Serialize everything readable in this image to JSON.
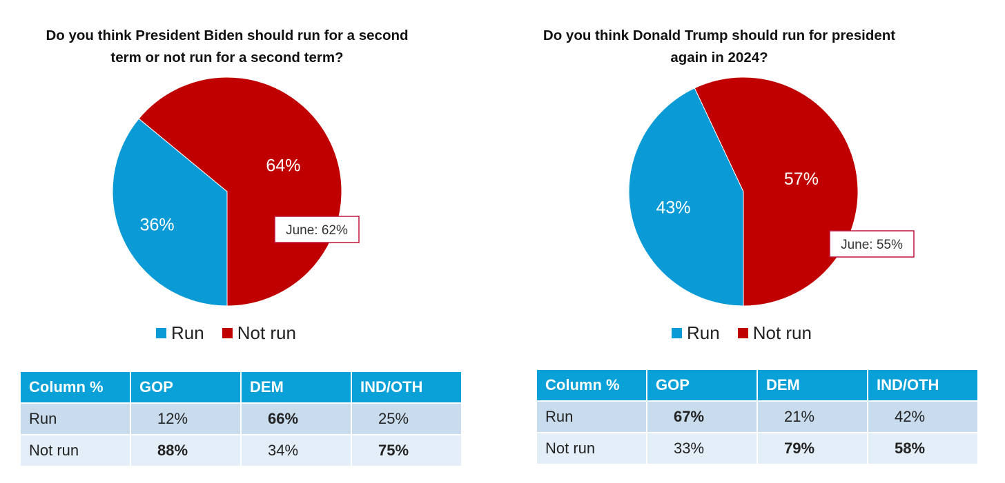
{
  "colors": {
    "run": "#0a9ad6",
    "not_run": "#c00000",
    "header": "#0aa0d8",
    "row_a": "#c9dcee",
    "row_b": "#e4eef8",
    "callout_border": "#c0143c"
  },
  "chart_data": [
    {
      "type": "pie",
      "title_lines": [
        "Do you think President Biden should run for a second",
        "term or not run for a second term?"
      ],
      "slices": [
        {
          "label": "Run",
          "value": 36,
          "display": "36%"
        },
        {
          "label": "Not run",
          "value": 64,
          "display": "64%"
        }
      ],
      "legend": [
        "Run",
        "Not run"
      ],
      "legend_placement": "bottom",
      "annotation": "June: 62%"
    },
    {
      "type": "pie",
      "title_lines": [
        "Do you think Donald Trump should run for president",
        "again in 2024?"
      ],
      "slices": [
        {
          "label": "Run",
          "value": 43,
          "display": "43%"
        },
        {
          "label": "Not run",
          "value": 57,
          "display": "57%"
        }
      ],
      "legend": [
        "Run",
        "Not run"
      ],
      "legend_placement": "bottom",
      "annotation": "June: 55%"
    }
  ],
  "tables": [
    {
      "headers": [
        "Column %",
        "GOP",
        "DEM",
        "IND/OTH"
      ],
      "rows": [
        {
          "label": "Run",
          "cells": [
            {
              "text": "12%",
              "bold": false
            },
            {
              "text": "66%",
              "bold": true
            },
            {
              "text": "25%",
              "bold": false
            }
          ]
        },
        {
          "label": "Not run",
          "cells": [
            {
              "text": "88%",
              "bold": true
            },
            {
              "text": "34%",
              "bold": false
            },
            {
              "text": "75%",
              "bold": true
            }
          ]
        }
      ]
    },
    {
      "headers": [
        "Column %",
        "GOP",
        "DEM",
        "IND/OTH"
      ],
      "rows": [
        {
          "label": "Run",
          "cells": [
            {
              "text": "67%",
              "bold": true
            },
            {
              "text": "21%",
              "bold": false
            },
            {
              "text": "42%",
              "bold": false
            }
          ]
        },
        {
          "label": "Not run",
          "cells": [
            {
              "text": "33%",
              "bold": false
            },
            {
              "text": "79%",
              "bold": true
            },
            {
              "text": "58%",
              "bold": true
            }
          ]
        }
      ]
    }
  ]
}
